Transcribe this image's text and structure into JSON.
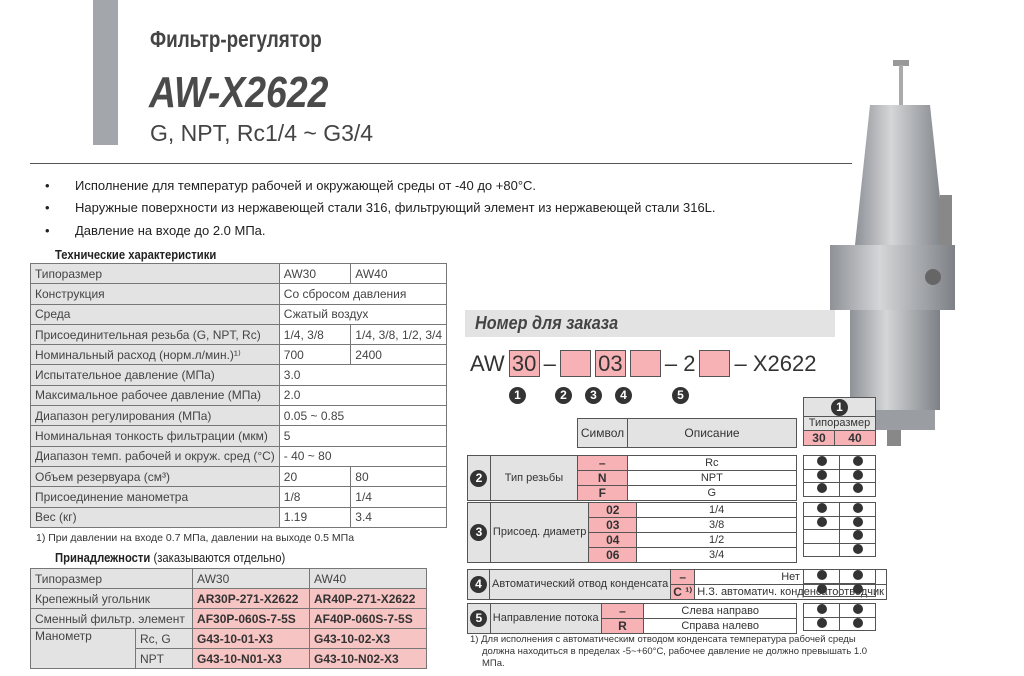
{
  "header": {
    "category": "Фильтр-регулятор",
    "model": "AW-X2622",
    "ports": "G, NPT, Rc1/4 ~ G3/4"
  },
  "bullets": [
    "Исполнение для температур рабочей и окружающей среды от -40 до +80°C.",
    "Наружные поверхности из нержавеющей стали 316, фильтрующий элемент из нержавеющей стали 316L.",
    "Давление на входе до 2.0 МПа."
  ],
  "specs": {
    "title": "Технические характеристики",
    "rows": [
      {
        "label": "Типоразмер",
        "aw30": "AW30",
        "aw40": "AW40"
      },
      {
        "label": "Конструкция",
        "both": "Со сбросом давления"
      },
      {
        "label": "Среда",
        "both": "Сжатый воздух"
      },
      {
        "label": "Присоединительная резьба (G, NPT, Rc)",
        "aw30": "1/4, 3/8",
        "aw40": "1/4, 3/8, 1/2, 3/4"
      },
      {
        "label": "Номинальный расход (норм.л/мин.)¹⁾",
        "aw30": "700",
        "aw40": "2400"
      },
      {
        "label": "Испытательное давление (МПа)",
        "both": "3.0"
      },
      {
        "label": "Максимальное рабочее давление (МПа)",
        "both": "2.0"
      },
      {
        "label": "Диапазон регулирования (МПа)",
        "both": "0.05 ~ 0.85"
      },
      {
        "label": "Номинальная тонкость фильтрации (мкм)",
        "both": "5"
      },
      {
        "label": "Диапазон темп. рабочей и окруж. сред (°C)",
        "both": "- 40 ~ 80"
      },
      {
        "label": "Объем резервуара (см³)",
        "aw30": "20",
        "aw40": "80"
      },
      {
        "label": "Присоединение манометра",
        "aw30": "1/8",
        "aw40": "1/4"
      },
      {
        "label": "Вес (кг)",
        "aw30": "1.19",
        "aw40": "3.4"
      }
    ],
    "footnote": "1) При давлении на входе 0.7 МПа, давлении на выходе 0.5 МПа"
  },
  "accessories": {
    "title": "Принадлежности",
    "note": "(заказываются отдельно)",
    "header": {
      "label": "Типоразмер",
      "aw30": "AW30",
      "aw40": "AW40"
    },
    "bracket": {
      "label": "Крепежный угольник",
      "aw30": "AR30P-271-X2622",
      "aw40": "AR40P-271-X2622"
    },
    "element": {
      "label": "Сменный фильтр. элемент",
      "aw30": "AF30P-060S-7-5S",
      "aw40": "AF40P-060S-7-5S"
    },
    "gauge": {
      "label": "Манометр",
      "rc": {
        "label": "Rc, G",
        "aw30": "G43-10-01-X3",
        "aw40": "G43-10-02-X3"
      },
      "npt": {
        "label": "NPT",
        "aw30": "G43-10-N01-X3",
        "aw40": "G43-10-N02-X3"
      }
    }
  },
  "order": {
    "title": "Номер для заказа",
    "code": {
      "prefix": "AW",
      "size": "30",
      "dash": "–",
      "diam": "03",
      "mid": "– 2",
      "suffix": "– X2622"
    },
    "nums": [
      "1",
      "2",
      "3",
      "4",
      "5"
    ],
    "col_symbol": "Символ",
    "col_desc": "Описание",
    "col_size": "Типоразмер",
    "size30": "30",
    "size40": "40",
    "groups": [
      {
        "num": "2",
        "label": "Тип резьбы",
        "rows": [
          {
            "s": "–",
            "d": "Rc",
            "a": true,
            "b": true
          },
          {
            "s": "N",
            "d": "NPT",
            "a": true,
            "b": true
          },
          {
            "s": "F",
            "d": "G",
            "a": true,
            "b": true
          }
        ]
      },
      {
        "num": "3",
        "label": "Присоед. диаметр",
        "rows": [
          {
            "s": "02",
            "d": "1/4",
            "a": true,
            "b": true
          },
          {
            "s": "03",
            "d": "3/8",
            "a": true,
            "b": true
          },
          {
            "s": "04",
            "d": "1/2",
            "a": false,
            "b": true
          },
          {
            "s": "06",
            "d": "3/4",
            "a": false,
            "b": true
          }
        ]
      },
      {
        "num": "4",
        "label": "Автоматический отвод конденсата",
        "rows": [
          {
            "s": "–",
            "d": "Нет",
            "a": true,
            "b": true
          },
          {
            "s": "C ¹⁾",
            "d": "Н.З. автоматич. конденсатоотводчик",
            "a": true,
            "b": true
          }
        ]
      },
      {
        "num": "5",
        "label": "Направление потока",
        "rows": [
          {
            "s": "–",
            "d": "Слева направо",
            "a": true,
            "b": true
          },
          {
            "s": "R",
            "d": "Справа налево",
            "a": true,
            "b": true
          }
        ]
      }
    ],
    "footnote": "1) Для исполнения с автоматическим отводом конденсата температура рабочей среды должна находиться в пределах -5~+60°C, рабочее давление не должно превышать 1.0 МПа."
  },
  "colors": {
    "accent_pink": "#f7b2b6",
    "header_gray": "#e3e3e3",
    "side_bar": "#a3a6ab"
  }
}
